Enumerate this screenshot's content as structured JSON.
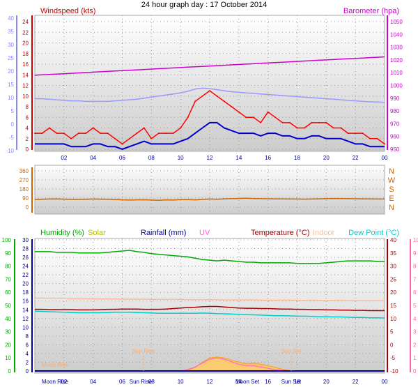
{
  "title": "24 hour graph day : 17 October 2014",
  "colors": {
    "wind_label": "#cc0000",
    "wind_gust": "#ff0000",
    "wind_avg": "#0000cc",
    "wind_faint": "#9999ff",
    "baro": "#cc00cc",
    "dir": "#cc6600",
    "humidity": "#00aa00",
    "solar": "#bbbb00",
    "rain": "#000099",
    "uv": "#ff66cc",
    "temp": "#aa0000",
    "indoor": "#ffbb99",
    "dew": "#00cccc",
    "left_axis_blue": "#8888ff",
    "left_axis_green": "#00aa00",
    "right_axis_pink": "#ff66aa"
  },
  "x_ticks": [
    "02",
    "04",
    "06",
    "08",
    "10",
    "12",
    "14",
    "16",
    "18",
    "20",
    "22",
    "00"
  ],
  "chart_data": [
    {
      "type": "line",
      "name": "wind-barometer",
      "x_hours": [
        0,
        0.5,
        1,
        1.5,
        2,
        2.5,
        3,
        3.5,
        4,
        4.5,
        5,
        5.5,
        6,
        6.5,
        7,
        7.5,
        8,
        8.5,
        9,
        9.5,
        10,
        10.5,
        11,
        11.5,
        12,
        12.5,
        13,
        13.5,
        14,
        14.5,
        15,
        15.5,
        16,
        16.5,
        17,
        17.5,
        18,
        18.5,
        19,
        19.5,
        20,
        20.5,
        21,
        21.5,
        22,
        22.5,
        23,
        23.5,
        24
      ],
      "left_labels": {
        "title": "Windspeed (kts)",
        "ticks": [
          0,
          2,
          4,
          6,
          8,
          10,
          12,
          14,
          16,
          18,
          20,
          22,
          24
        ]
      },
      "left_outer_ticks": [
        40,
        35,
        30,
        25,
        20,
        15,
        10,
        5,
        0,
        -5,
        -10
      ],
      "right_labels": {
        "title": "Barometer (hpa)",
        "ticks": [
          950,
          960,
          970,
          980,
          990,
          1000,
          1010,
          1020,
          1030,
          1040,
          1050
        ]
      },
      "series": [
        {
          "name": "Windspeed (kts)",
          "role": "gust",
          "values": [
            3,
            3,
            4,
            3,
            3,
            2,
            3,
            3,
            4,
            3,
            3,
            2,
            1,
            2,
            3,
            4,
            2,
            3,
            3,
            3,
            4,
            6,
            9,
            10,
            11,
            10,
            9,
            8,
            7,
            6,
            6,
            5,
            7,
            6,
            5,
            5,
            4,
            4,
            5,
            5,
            5,
            4,
            4,
            3,
            3,
            3,
            2,
            2,
            1
          ]
        },
        {
          "values": [
            1,
            1,
            1,
            1,
            1,
            0.5,
            0.5,
            0.5,
            1,
            1,
            0.5,
            0.5,
            0,
            0.5,
            1,
            1.5,
            1,
            1,
            1,
            1,
            1.5,
            2,
            3,
            4,
            5,
            5,
            4,
            3.5,
            3,
            3,
            3,
            2.5,
            3,
            3,
            2.5,
            2.5,
            2,
            2,
            2.5,
            2.5,
            2,
            2,
            2,
            1.5,
            1,
            1,
            0.5,
            0.5,
            0.5
          ]
        },
        {
          "name": "Barometer (hpa)",
          "values": [
            1008,
            1008.3,
            1008.6,
            1008.9,
            1009.2,
            1009.5,
            1009.8,
            1010.1,
            1010.4,
            1010.7,
            1011,
            1011.3,
            1011.6,
            1011.9,
            1012.2,
            1012.5,
            1012.8,
            1013.1,
            1013.4,
            1013.7,
            1014,
            1014.3,
            1014.6,
            1014.9,
            1015.2,
            1015.5,
            1015.8,
            1016.1,
            1016.4,
            1016.7,
            1017,
            1017.3,
            1017.6,
            1017.9,
            1018.2,
            1018.5,
            1018.8,
            1019.1,
            1019.4,
            1019.7,
            1020,
            1020.3,
            1020.6,
            1020.9,
            1021.2,
            1021.5,
            1021.8,
            1022.1,
            1022.4
          ]
        },
        {
          "values": [
            9.5,
            9.5,
            9.4,
            9.3,
            9.2,
            9.1,
            9.1,
            9.0,
            9.0,
            9.0,
            9.0,
            9.1,
            9.2,
            9.3,
            9.4,
            9.6,
            9.8,
            10.0,
            10.2,
            10.4,
            10.6,
            10.9,
            11.3,
            11.5,
            11.4,
            11.2,
            11.0,
            10.8,
            10.7,
            10.6,
            10.5,
            10.4,
            10.3,
            10.2,
            10.1,
            10.0,
            9.9,
            9.8,
            9.7,
            9.6,
            9.5,
            9.4,
            9.3,
            9.2,
            9.1,
            9.0,
            8.9,
            8.9,
            8.8
          ]
        }
      ]
    },
    {
      "type": "line",
      "name": "wind-direction",
      "x_hours": [
        0,
        0.5,
        1,
        1.5,
        2,
        2.5,
        3,
        3.5,
        4,
        4.5,
        5,
        5.5,
        6,
        6.5,
        7,
        7.5,
        8,
        8.5,
        9,
        9.5,
        10,
        10.5,
        11,
        11.5,
        12,
        12.5,
        13,
        13.5,
        14,
        14.5,
        15,
        15.5,
        16,
        16.5,
        17,
        17.5,
        18,
        18.5,
        19,
        19.5,
        20,
        20.5,
        21,
        21.5,
        22,
        22.5,
        23,
        23.5,
        24
      ],
      "left_labels": {
        "ticks": [
          0,
          90,
          180,
          270,
          360
        ]
      },
      "right_labels": {
        "ticks": [
          "N",
          "E",
          "S",
          "W",
          "N"
        ]
      },
      "series": [
        {
          "values": [
            75,
            78,
            80,
            82,
            79,
            77,
            76,
            78,
            80,
            79,
            78,
            76,
            72,
            70,
            72,
            73,
            70,
            68,
            72,
            70,
            75,
            74,
            72,
            76,
            80,
            78,
            82,
            84,
            86,
            88,
            85,
            84,
            83,
            82,
            81,
            80,
            80,
            79,
            80,
            82,
            84,
            86,
            85,
            84,
            83,
            82,
            81,
            80,
            80
          ]
        }
      ]
    },
    {
      "type": "line",
      "name": "humidity-temperature",
      "x_hours": [
        0,
        0.5,
        1,
        1.5,
        2,
        2.5,
        3,
        3.5,
        4,
        4.5,
        5,
        5.5,
        6,
        6.5,
        7,
        7.5,
        8,
        8.5,
        9,
        9.5,
        10,
        10.5,
        11,
        11.5,
        12,
        12.5,
        13,
        13.5,
        14,
        14.5,
        15,
        15.5,
        16,
        16.5,
        17,
        17.5,
        18,
        18.5,
        19,
        19.5,
        20,
        20.5,
        21,
        21.5,
        22,
        22.5,
        23,
        23.5,
        24
      ],
      "left_labels": {
        "ticks": [
          0,
          2,
          4,
          6,
          8,
          10,
          12,
          14,
          16,
          18,
          20,
          22,
          24,
          26,
          28,
          30
        ]
      },
      "left_outer_ticks": [
        100,
        90,
        80,
        70,
        60,
        50,
        40,
        30,
        20,
        10,
        0
      ],
      "right_labels": {
        "ticks": [
          40,
          35,
          30,
          25,
          20,
          15,
          10,
          5,
          0,
          -5,
          -10
        ]
      },
      "right_outer_ticks": [
        10,
        9,
        8,
        7,
        6,
        5,
        4,
        3,
        2,
        1,
        0
      ],
      "headers": [
        {
          "label": "Humidity (%)"
        },
        {
          "label": "Solar"
        },
        {
          "label": "Rainfall (mm)"
        },
        {
          "label": "UV"
        },
        {
          "label": "Temperature (°C)"
        },
        {
          "label": "Indoor"
        },
        {
          "label": "Dew Point (°C)"
        }
      ],
      "annotations": [
        "Moon Rise",
        "Sun Rise",
        "Sun Set",
        "Moon Set",
        "Moon Rise",
        "Sun Rise",
        "Moon Set",
        "Sun Set"
      ],
      "series": [
        {
          "name": "Humidity (%)",
          "values": [
            91,
            91,
            91,
            90.5,
            90.5,
            90.5,
            90,
            90,
            90,
            90,
            90.5,
            91,
            91.5,
            92,
            91,
            90.5,
            89.5,
            89,
            88.5,
            88,
            87.5,
            87,
            86,
            85,
            84.5,
            84,
            84.5,
            84,
            83.5,
            83,
            83,
            82.5,
            82.5,
            82.5,
            82.5,
            82.5,
            82,
            82,
            82,
            82,
            82.5,
            83,
            83.5,
            84,
            84,
            84,
            84,
            83.5,
            83.5
          ]
        },
        {
          "name": "Solar",
          "values": [
            0,
            0,
            0,
            0,
            0,
            0,
            0,
            0,
            0,
            0,
            0,
            0,
            0,
            0,
            0,
            0,
            0,
            0,
            0,
            0,
            0,
            0.2,
            0.8,
            2,
            3,
            3.2,
            3,
            2.5,
            2,
            1.6,
            1.8,
            1.5,
            1.2,
            0.8,
            0.4,
            0.1,
            0,
            0,
            0,
            0,
            0,
            0,
            0,
            0,
            0,
            0,
            0,
            0,
            0
          ]
        },
        {
          "name": "Temperature (°C)",
          "values": [
            13.5,
            13.5,
            13.4,
            13.4,
            13.4,
            13.4,
            13.3,
            13.3,
            13.3,
            13.4,
            13.5,
            13.5,
            13.6,
            13.6,
            13.6,
            13.5,
            13.5,
            13.5,
            13.6,
            13.8,
            14,
            14.2,
            14.3,
            14.5,
            14.6,
            14.6,
            14.4,
            14.2,
            14,
            13.9,
            13.9,
            13.8,
            13.8,
            13.7,
            13.6,
            13.6,
            13.5,
            13.5,
            13.4,
            13.4,
            13.3,
            13.3,
            13.2,
            13.2,
            13.1,
            13.1,
            13.0,
            13.0,
            13.0
          ]
        },
        {
          "name": "Indoor",
          "values": [
            17.8,
            17.8,
            17.7,
            17.7,
            17.7,
            17.6,
            17.6,
            17.6,
            17.5,
            17.5,
            17.5,
            17.5,
            17.4,
            17.4,
            17.4,
            17.4,
            17.3,
            17.3,
            17.3,
            17.3,
            17.3,
            17.2,
            17.2,
            17.2,
            17.2,
            17.2,
            17.1,
            17.1,
            17.1,
            17.1,
            17.1,
            17.0,
            17.0,
            17.0,
            17.0,
            17.0,
            17.0,
            16.9,
            16.9,
            16.9,
            16.9,
            16.9,
            16.9,
            16.8,
            16.8,
            16.8,
            16.8,
            16.8,
            16.8
          ]
        },
        {
          "name": "Dew Point (°C)",
          "values": [
            12.8,
            12.7,
            12.6,
            12.5,
            12.4,
            12.3,
            12.2,
            12.2,
            12.2,
            12.2,
            12.3,
            12.4,
            12.4,
            12.4,
            12.3,
            12.2,
            12.1,
            12.0,
            12.0,
            12.0,
            12.0,
            12.0,
            12.0,
            12.1,
            12.0,
            11.9,
            11.8,
            11.7,
            11.6,
            11.5,
            11.4,
            11.3,
            11.2,
            11.1,
            11.1,
            11.0,
            10.9,
            10.9,
            10.8,
            10.7,
            10.7,
            10.6,
            10.6,
            10.5,
            10.4,
            10.4,
            10.3,
            10.3,
            10.2
          ]
        },
        {
          "name": "UV",
          "values": [
            0,
            0,
            0,
            0,
            0,
            0,
            0,
            0,
            0,
            0,
            0,
            0,
            0,
            0,
            0,
            0,
            0,
            0,
            0,
            0,
            0,
            0.1,
            0.3,
            0.6,
            0.9,
            1.0,
            0.9,
            0.7,
            0.5,
            0.4,
            0.4,
            0.3,
            0.2,
            0.1,
            0.05,
            0,
            0,
            0,
            0,
            0,
            0,
            0,
            0,
            0,
            0,
            0,
            0,
            0,
            0
          ]
        },
        {
          "name": "Rainfall (mm)",
          "values": [
            0,
            0,
            0,
            0,
            0,
            0,
            0,
            0,
            0,
            0,
            0,
            0,
            0,
            0,
            0,
            0,
            0,
            0,
            0,
            0,
            0,
            0,
            0,
            0,
            0,
            0,
            0,
            0,
            0,
            0,
            0,
            0,
            0,
            0,
            0,
            0,
            0,
            0,
            0,
            0,
            0,
            0,
            0,
            0,
            0,
            0,
            0,
            0,
            0
          ]
        }
      ]
    }
  ]
}
